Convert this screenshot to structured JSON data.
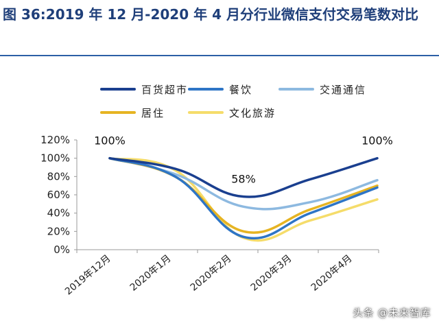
{
  "header": {
    "title": "图 36:2019 年 12 月-2020 年 4 月分行业微信支付交易笔数对比"
  },
  "watermark": "头条 @未来智库",
  "chart_data": {
    "type": "line",
    "categories": [
      "2019年12月",
      "2020年1月",
      "2020年2月",
      "2020年3月",
      "2020年4月"
    ],
    "ylim": [
      0,
      120
    ],
    "yticks": [
      "0%",
      "20%",
      "40%",
      "60%",
      "80%",
      "100%",
      "120%"
    ],
    "series": [
      {
        "name": "百货超市",
        "color": "#1a3f8f",
        "values": [
          100,
          88,
          58,
          77,
          100
        ]
      },
      {
        "name": "餐饮",
        "color": "#2e75c6",
        "values": [
          100,
          79,
          14,
          40,
          68
        ]
      },
      {
        "name": "交通通信",
        "color": "#8db9e0",
        "values": [
          100,
          82,
          47,
          52,
          76
        ]
      },
      {
        "name": "居住",
        "color": "#e6b422",
        "values": [
          100,
          79,
          20,
          44,
          70
        ]
      },
      {
        "name": "文化旅游",
        "color": "#f5dc6a",
        "values": [
          100,
          86,
          13,
          32,
          55
        ]
      }
    ],
    "annotations": [
      {
        "label": "100%",
        "series": 0,
        "index": 0
      },
      {
        "label": "58%",
        "series": 0,
        "index": 2
      },
      {
        "label": "100%",
        "series": 0,
        "index": 4
      }
    ]
  }
}
